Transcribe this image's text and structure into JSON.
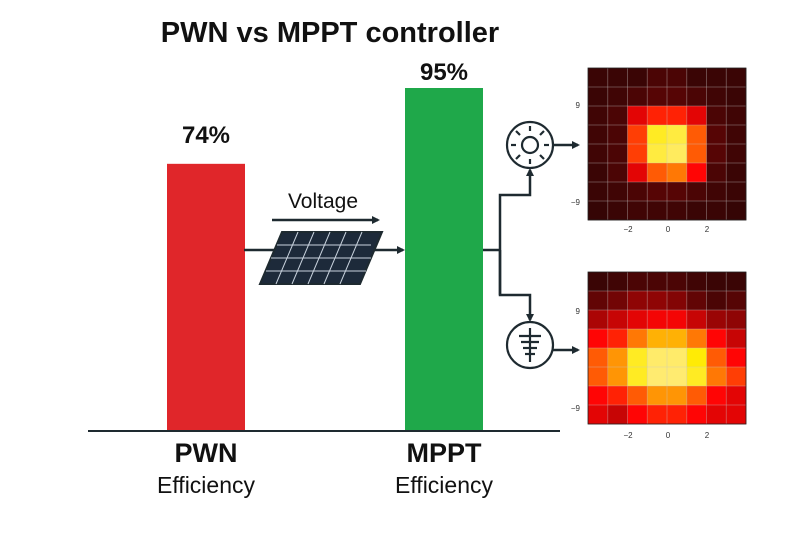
{
  "title": "PWN vs MPPT controller",
  "colors": {
    "pwn_bar": "#e0262a",
    "mppt_bar": "#1fa84a",
    "line": "#1e2a30"
  },
  "chart_data": {
    "type": "bar",
    "categories": [
      "PWN",
      "MPPT"
    ],
    "category_sublabels": [
      "Efficiency",
      "Efficiency"
    ],
    "values": [
      74,
      95
    ],
    "data_labels": [
      "74%",
      "95%"
    ],
    "ylim": [
      0,
      100
    ]
  },
  "diagram": {
    "voltage_label": "Voltage",
    "icons": [
      "solar-panel-icon",
      "sun-gauge-icon",
      "battery-ground-icon"
    ]
  },
  "heatmaps": [
    {
      "colormap": "hot",
      "y_ticks": [
        "9",
        "−9"
      ],
      "x_ticks": [
        "−2",
        "0",
        "2"
      ],
      "values": [
        [
          0.05,
          0.05,
          0.05,
          0.08,
          0.08,
          0.05,
          0.05,
          0.05
        ],
        [
          0.05,
          0.06,
          0.08,
          0.1,
          0.1,
          0.08,
          0.06,
          0.05
        ],
        [
          0.06,
          0.08,
          0.35,
          0.45,
          0.45,
          0.35,
          0.08,
          0.06
        ],
        [
          0.06,
          0.08,
          0.5,
          0.85,
          0.9,
          0.55,
          0.1,
          0.06
        ],
        [
          0.06,
          0.08,
          0.5,
          0.9,
          0.95,
          0.55,
          0.1,
          0.06
        ],
        [
          0.05,
          0.08,
          0.35,
          0.55,
          0.6,
          0.4,
          0.08,
          0.05
        ],
        [
          0.05,
          0.06,
          0.08,
          0.1,
          0.1,
          0.08,
          0.06,
          0.05
        ],
        [
          0.04,
          0.05,
          0.06,
          0.06,
          0.06,
          0.05,
          0.05,
          0.04
        ]
      ]
    },
    {
      "colormap": "hot",
      "y_ticks": [
        "9",
        "−9"
      ],
      "x_ticks": [
        "−2",
        "0",
        "2"
      ],
      "values": [
        [
          0.05,
          0.06,
          0.08,
          0.08,
          0.08,
          0.06,
          0.05,
          0.05
        ],
        [
          0.12,
          0.15,
          0.2,
          0.2,
          0.18,
          0.12,
          0.08,
          0.1
        ],
        [
          0.25,
          0.3,
          0.35,
          0.38,
          0.38,
          0.3,
          0.22,
          0.2
        ],
        [
          0.4,
          0.45,
          0.6,
          0.7,
          0.7,
          0.6,
          0.4,
          0.3
        ],
        [
          0.55,
          0.65,
          0.85,
          0.97,
          0.97,
          0.8,
          0.55,
          0.4
        ],
        [
          0.55,
          0.65,
          0.85,
          0.98,
          0.98,
          0.85,
          0.6,
          0.5
        ],
        [
          0.4,
          0.45,
          0.55,
          0.65,
          0.65,
          0.55,
          0.4,
          0.35
        ],
        [
          0.35,
          0.3,
          0.4,
          0.45,
          0.45,
          0.4,
          0.35,
          0.35
        ]
      ]
    }
  ]
}
